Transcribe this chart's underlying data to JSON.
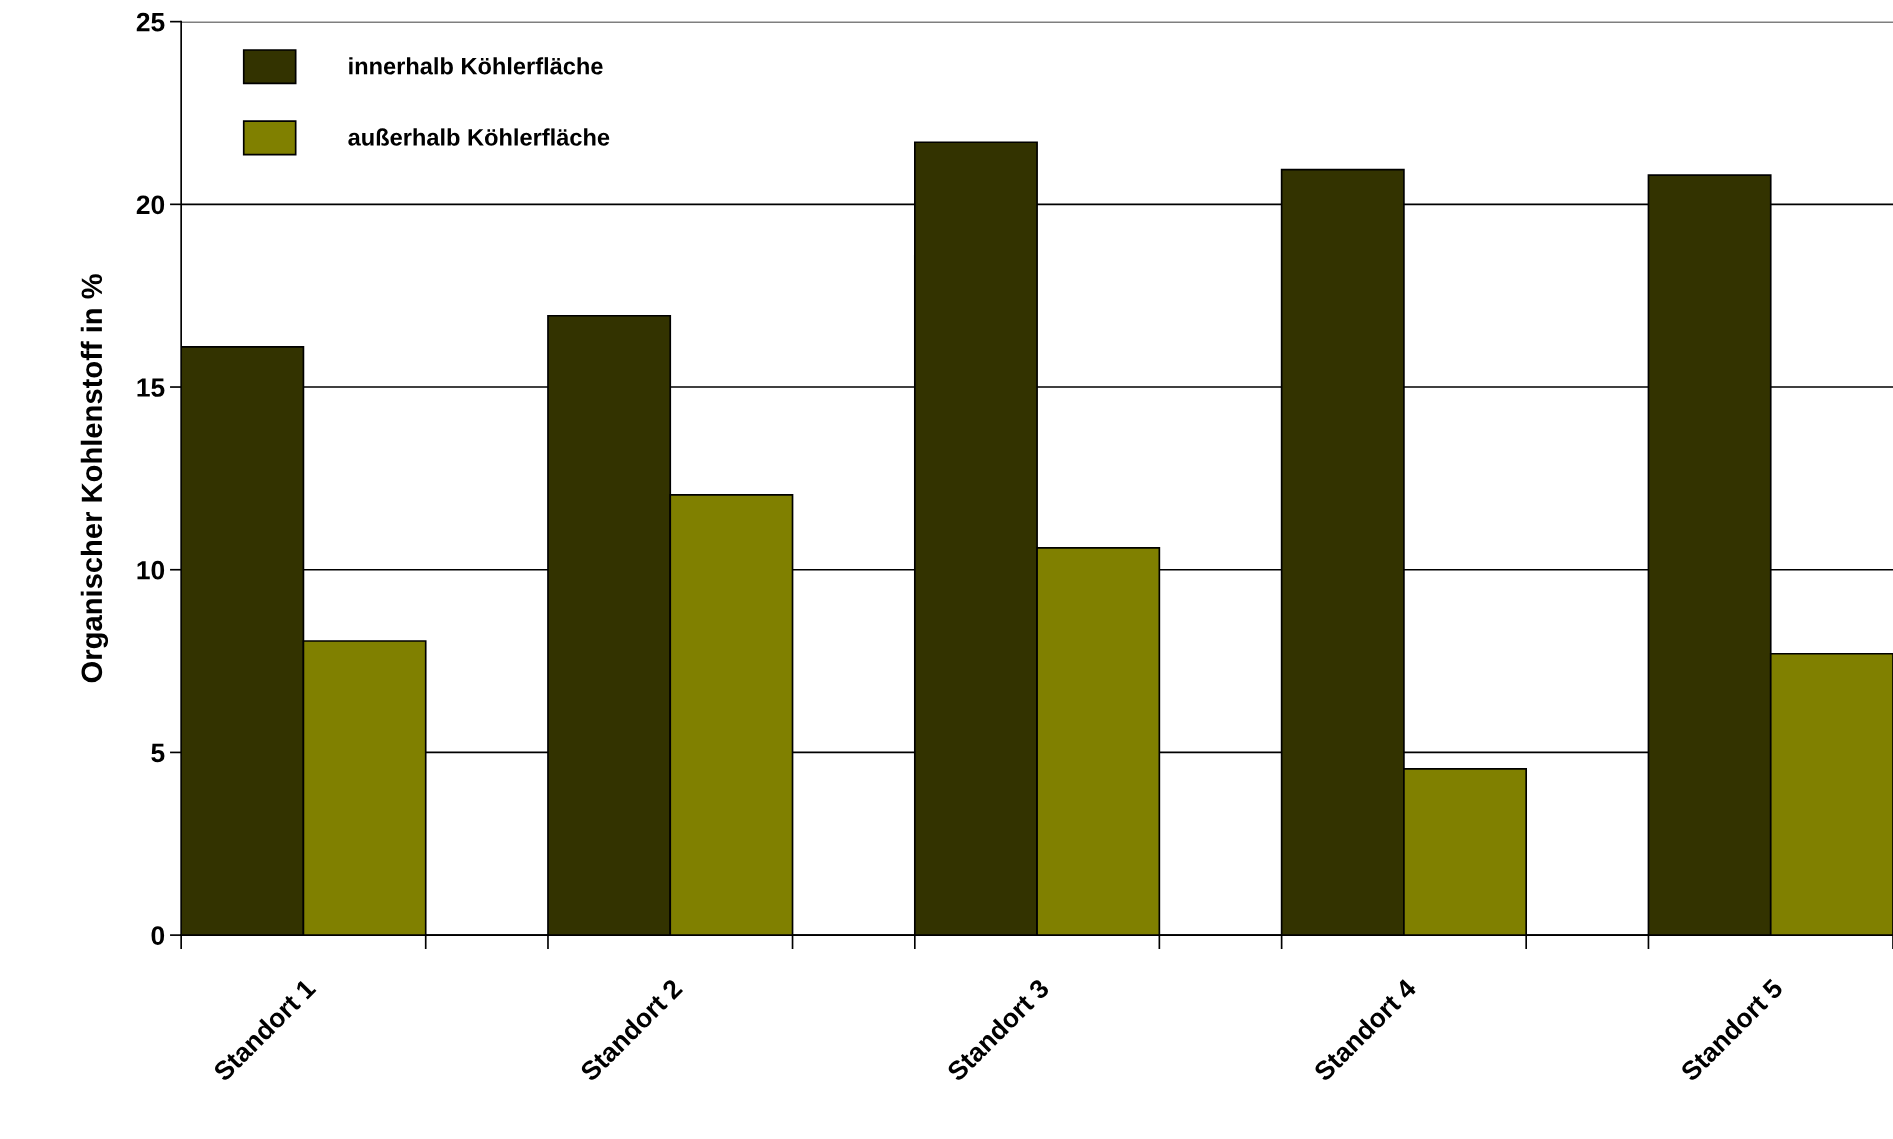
{
  "chart_data": {
    "type": "bar",
    "ylabel": "Organischer Kohlenstoff in %",
    "categories": [
      "Standort 1",
      "Standort 2",
      "Standort 3",
      "Standort 4",
      "Standort 5"
    ],
    "series": [
      {
        "name": "innerhalb Köhlerfläche",
        "color": "#333300",
        "values": [
          16.1,
          16.95,
          21.7,
          20.95,
          20.8
        ]
      },
      {
        "name": "außerhalb Köhlerfläche",
        "color": "#808000",
        "values": [
          8.05,
          12.05,
          10.6,
          4.55,
          7.7
        ]
      }
    ],
    "ylim": [
      0,
      25
    ],
    "yticks": [
      0,
      5,
      10,
      15,
      20,
      25
    ],
    "grid": "y",
    "legend": "top left"
  }
}
